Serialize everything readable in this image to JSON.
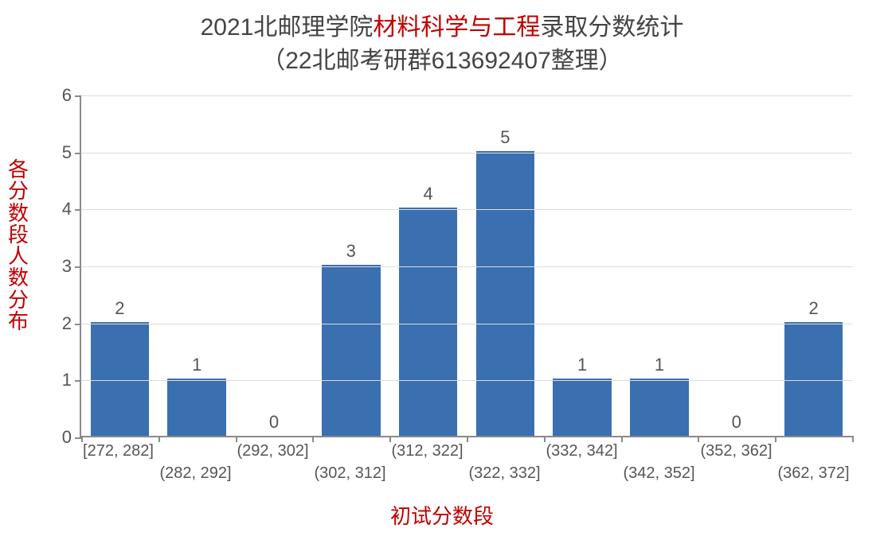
{
  "title": {
    "line1_pre": "2021北邮理学院",
    "line1_highlight": "材料科学与工程",
    "line1_post": "录取分数统计",
    "line2": "（22北邮考研群613692407整理）",
    "fontsize": 30,
    "color_normal": "#444444",
    "color_highlight": "#c00000"
  },
  "chart": {
    "type": "bar",
    "background_color": "#ffffff",
    "grid_color": "#dcdcdc",
    "axis_color": "#8a8a8a",
    "bar_color": "#3a6fb0",
    "ylim": [
      0,
      6
    ],
    "ytick_step": 1,
    "yticks": [
      0,
      1,
      2,
      3,
      4,
      5,
      6
    ],
    "bar_width": 0.76,
    "categories": [
      "[272, 282]",
      "(282, 292]",
      "(292, 302]",
      "(302, 312]",
      "(312, 322]",
      "(322, 332]",
      "(332, 342]",
      "(342, 352]",
      "(352, 362]",
      "(362, 372]"
    ],
    "values": [
      2,
      1,
      0,
      3,
      4,
      5,
      1,
      1,
      0,
      2
    ],
    "value_label_fontsize": 22,
    "tick_label_fontsize": 22,
    "category_label_fontsize": 20,
    "label_color": "#555555",
    "x_label_stagger_rows": 2
  },
  "axes": {
    "y_title": "各分数段人数分布",
    "x_title": "初试分数段",
    "title_fontsize": 26,
    "title_color": "#c00000"
  }
}
